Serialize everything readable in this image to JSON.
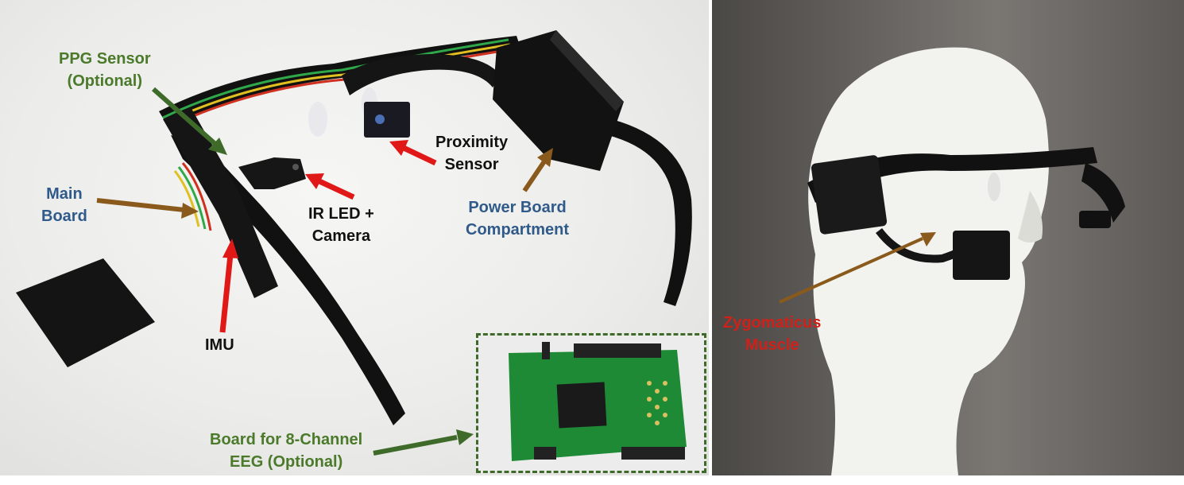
{
  "labels": {
    "ppg_sensor": [
      "PPG Sensor",
      "(Optional)"
    ],
    "main_board": [
      "Main",
      "Board"
    ],
    "imu": "IMU",
    "ir_led_camera": [
      "IR LED +",
      "Camera"
    ],
    "proximity_sensor": [
      "Proximity",
      "Sensor"
    ],
    "power_board": [
      "Power Board",
      "Compartment"
    ],
    "eeg_board": [
      "Board for 8-Channel",
      "EEG (Optional)"
    ],
    "zygomaticus": [
      "Zygomaticus",
      "Muscle"
    ]
  },
  "colors": {
    "green_label": "#4a7a2a",
    "blue_label": "#2f5a8a",
    "red_arrow": "#e01818",
    "brown_arrow": "#8a5a1c",
    "green_arrow": "#3f6b2a"
  }
}
